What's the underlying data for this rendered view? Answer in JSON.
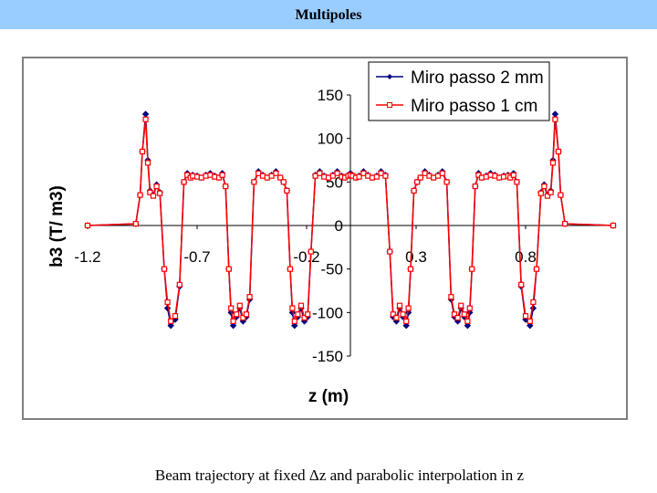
{
  "page_title": "Multipoles",
  "caption": "Beam trajectory at fixed Δz and parabolic interpolation in z",
  "chart_data": {
    "type": "line",
    "xlabel": "z (m)",
    "ylabel": "b3 (T/ m3)",
    "xlim": [
      -1.2,
      1.2
    ],
    "ylim": [
      -150,
      150
    ],
    "xticks": [
      "-1.2",
      "-0.7",
      "-0.2",
      "0.3",
      "0.8"
    ],
    "yticks": [
      "150",
      "100",
      "50",
      "0",
      "-50",
      "-100",
      "-150"
    ],
    "legend_position": "top-right",
    "series": [
      {
        "name": "Miro passo 2 mm",
        "color": "#000080",
        "marker": "diamond",
        "x": [
          -1.2,
          -0.98,
          -0.96,
          -0.95,
          -0.935,
          -0.925,
          -0.915,
          -0.9,
          -0.885,
          -0.87,
          -0.85,
          -0.835,
          -0.82,
          -0.8,
          -0.78,
          -0.76,
          -0.745,
          -0.73,
          -0.72,
          -0.7,
          -0.68,
          -0.66,
          -0.64,
          -0.62,
          -0.6,
          -0.585,
          -0.57,
          -0.555,
          -0.545,
          -0.535,
          -0.52,
          -0.505,
          -0.49,
          -0.475,
          -0.46,
          -0.44,
          -0.42,
          -0.4,
          -0.38,
          -0.36,
          -0.34,
          -0.32,
          -0.305,
          -0.29,
          -0.275,
          -0.265,
          -0.255,
          -0.24,
          -0.225,
          -0.21,
          -0.195,
          -0.18,
          -0.16,
          -0.14,
          -0.12,
          -0.1,
          -0.08,
          -0.06,
          -0.04,
          -0.025,
          -0.01,
          0.0
        ],
        "y": [
          0,
          2,
          35,
          85,
          128,
          75,
          40,
          35,
          47,
          38,
          -50,
          -95,
          -115,
          -108,
          -70,
          50,
          60,
          55,
          58,
          57,
          55,
          58,
          60,
          57,
          55,
          60,
          45,
          -50,
          -100,
          -115,
          -105,
          -95,
          -110,
          -105,
          -85,
          50,
          62,
          58,
          55,
          58,
          62,
          55,
          50,
          40,
          -50,
          -100,
          -115,
          -105,
          -95,
          -110,
          -105,
          -30,
          58,
          62,
          57,
          55,
          58,
          62,
          57,
          55,
          58,
          60
        ]
      },
      {
        "name": "Miro passo 1 cm",
        "color": "#ff0000",
        "marker": "square",
        "x": [
          -1.2,
          -0.98,
          -0.96,
          -0.95,
          -0.935,
          -0.925,
          -0.915,
          -0.9,
          -0.885,
          -0.87,
          -0.85,
          -0.835,
          -0.82,
          -0.8,
          -0.78,
          -0.76,
          -0.745,
          -0.73,
          -0.72,
          -0.7,
          -0.68,
          -0.66,
          -0.64,
          -0.62,
          -0.6,
          -0.585,
          -0.57,
          -0.555,
          -0.545,
          -0.535,
          -0.52,
          -0.505,
          -0.49,
          -0.475,
          -0.46,
          -0.44,
          -0.42,
          -0.4,
          -0.38,
          -0.36,
          -0.34,
          -0.32,
          -0.305,
          -0.29,
          -0.275,
          -0.265,
          -0.255,
          -0.24,
          -0.225,
          -0.21,
          -0.195,
          -0.18,
          -0.16,
          -0.14,
          -0.12,
          -0.1,
          -0.08,
          -0.06,
          -0.04,
          -0.025,
          -0.01,
          0.0
        ],
        "y": [
          0,
          2,
          35,
          85,
          122,
          72,
          38,
          34,
          45,
          37,
          -50,
          -88,
          -110,
          -104,
          -68,
          50,
          58,
          55,
          57,
          56,
          55,
          57,
          58,
          56,
          55,
          58,
          45,
          -50,
          -95,
          -110,
          -102,
          -92,
          -106,
          -102,
          -82,
          50,
          60,
          57,
          55,
          57,
          60,
          55,
          50,
          40,
          -50,
          -95,
          -110,
          -102,
          -92,
          -106,
          -102,
          -30,
          57,
          60,
          56,
          55,
          57,
          60,
          56,
          55,
          57,
          58
        ]
      }
    ]
  }
}
